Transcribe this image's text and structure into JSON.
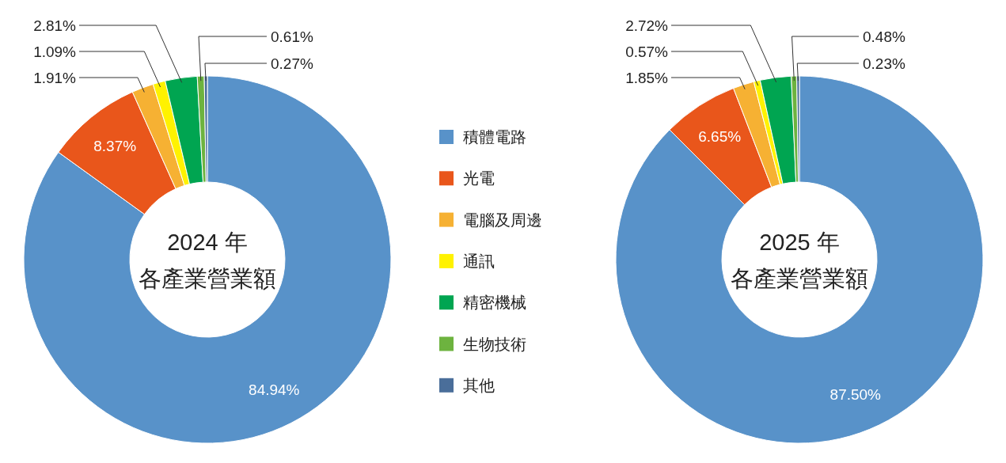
{
  "chart_data": [
    {
      "type": "donut",
      "title": "2024 年",
      "subtitle": "各產業營業額",
      "legend": "right",
      "categories": [
        "積體電路",
        "光電",
        "電腦及周邊",
        "通訊",
        "精密機械",
        "生物技術",
        "其他"
      ],
      "values": [
        84.94,
        8.37,
        1.91,
        1.09,
        2.81,
        0.61,
        0.27
      ],
      "value_labels": [
        "84.94%",
        "8.37%",
        "1.91%",
        "1.09%",
        "2.81%",
        "0.61%",
        "0.27%"
      ],
      "colors": [
        "#5892c9",
        "#e9561b",
        "#f6b133",
        "#fff200",
        "#00a551",
        "#6db33f",
        "#4a6e9a"
      ]
    },
    {
      "type": "donut",
      "title": "2025 年",
      "subtitle": "各產業營業額",
      "legend": false,
      "categories": [
        null,
        null,
        null,
        null,
        null,
        null,
        null
      ],
      "values": [
        87.5,
        6.65,
        1.85,
        0.57,
        2.72,
        0.48,
        0.23
      ],
      "value_labels": [
        "87.50%",
        "6.65%",
        "1.85%",
        "0.57%",
        "2.72%",
        "0.48%",
        "0.23%"
      ],
      "colors": [
        "#5892c9",
        "#e9561b",
        "#f6b133",
        "#fff200",
        "#00a551",
        "#6db33f",
        "#4a6e9a"
      ]
    }
  ]
}
